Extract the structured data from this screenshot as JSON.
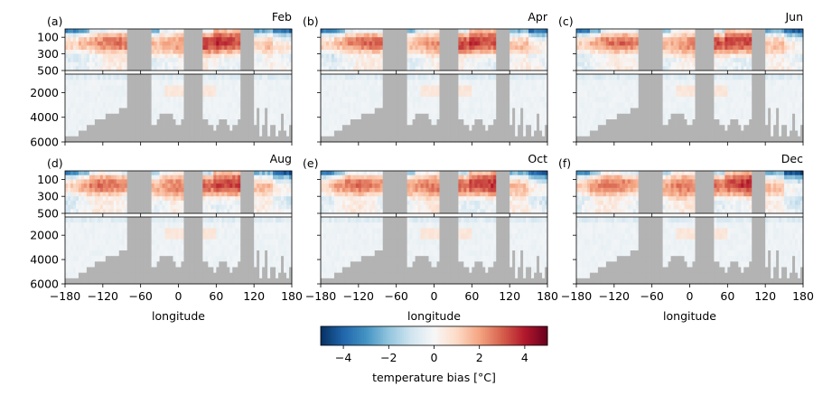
{
  "chart_data": {
    "type": "heatmap",
    "panels": [
      {
        "label": "(a)",
        "month": "Feb"
      },
      {
        "label": "(b)",
        "month": "Apr"
      },
      {
        "label": "(c)",
        "month": "Jun"
      },
      {
        "label": "(d)",
        "month": "Aug"
      },
      {
        "label": "(e)",
        "month": "Oct"
      },
      {
        "label": "(f)",
        "month": "Dec"
      }
    ],
    "x": {
      "label": "longitude",
      "range": [
        -180,
        180
      ],
      "ticks": [
        -180,
        -120,
        -60,
        0,
        60,
        120,
        180
      ],
      "tick_labels": [
        "−180",
        "−120",
        "−60",
        "0",
        "60",
        "120",
        "180"
      ]
    },
    "y_upper": {
      "range": [
        0,
        500
      ],
      "ticks": [
        100,
        300,
        500
      ],
      "tick_labels": [
        "100",
        "300",
        "500"
      ]
    },
    "y_lower": {
      "range": [
        500,
        6000
      ],
      "ticks": [
        2000,
        4000,
        6000
      ],
      "tick_labels": [
        "2000",
        "4000",
        "6000"
      ]
    },
    "y_inverted": true,
    "land_lon_ranges": [
      [
        -80,
        -45
      ],
      [
        10,
        40
      ],
      [
        100,
        118
      ]
    ],
    "colorbar": {
      "label": "temperature bias [°C]",
      "range": [
        -5,
        5
      ],
      "ticks": [
        -4,
        -2,
        0,
        2,
        4
      ],
      "tick_labels": [
        "−4",
        "−2",
        "0",
        "2",
        "4"
      ],
      "colormap": "RdBu_r",
      "colors": [
        "#053061",
        "#2166ac",
        "#4393c3",
        "#92c5de",
        "#d1e5f0",
        "#f7f7f7",
        "#fddbc7",
        "#f4a582",
        "#d6604d",
        "#b2182b",
        "#67001f"
      ]
    },
    "land_color": "#b3b3b3"
  }
}
